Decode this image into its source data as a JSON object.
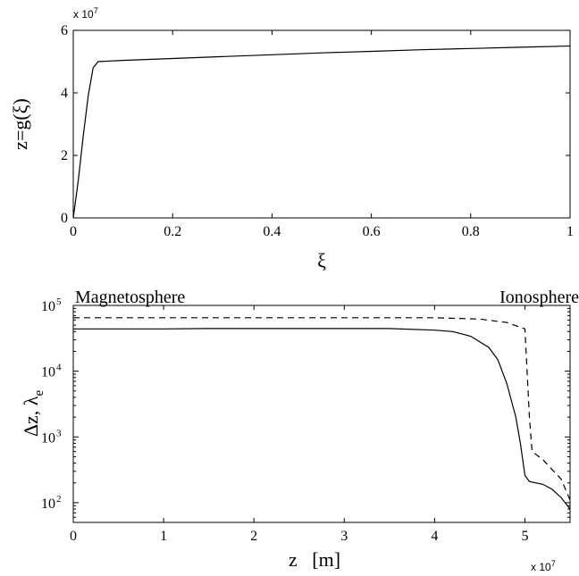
{
  "chart_data": [
    {
      "type": "line",
      "xlabel": "ξ",
      "ylabel": "z=g(ξ)",
      "xlim": [
        0,
        1
      ],
      "ylim": [
        0,
        6
      ],
      "y_multiplier": "x 10",
      "y_multiplier_exp": "7",
      "xticks": [
        "0",
        "0.2",
        "0.4",
        "0.6",
        "0.8",
        "1"
      ],
      "yticks": [
        "0",
        "2",
        "4",
        "6"
      ],
      "series": [
        {
          "style": "solid",
          "x": [
            0,
            0.01,
            0.02,
            0.03,
            0.04,
            0.05,
            0.1,
            0.2,
            0.3,
            0.4,
            0.5,
            0.6,
            0.7,
            0.8,
            0.9,
            1.0
          ],
          "y": [
            0,
            1.2,
            2.6,
            3.9,
            4.8,
            5.0,
            5.04,
            5.1,
            5.16,
            5.22,
            5.28,
            5.33,
            5.38,
            5.42,
            5.46,
            5.5
          ]
        }
      ]
    },
    {
      "type": "line",
      "xlabel": "z   [m]",
      "ylabel": "Δz, λ",
      "ylabel_sub": "e",
      "xlim": [
        0,
        5.5
      ],
      "ylim_exp": [
        1.7,
        5
      ],
      "yscale": "log",
      "x_multiplier": "x 10",
      "x_multiplier_exp": "7",
      "xticks": [
        "0",
        "1",
        "2",
        "3",
        "4",
        "5"
      ],
      "yticks": [
        {
          "base": "10",
          "exp": "2"
        },
        {
          "base": "10",
          "exp": "3"
        },
        {
          "base": "10",
          "exp": "4"
        },
        {
          "base": "10",
          "exp": "5"
        }
      ],
      "annotations": [
        "Magnetosphere",
        "Ionosphere"
      ],
      "series": [
        {
          "style": "solid",
          "x": [
            0,
            0.5,
            1,
            1.5,
            2,
            2.5,
            3,
            3.5,
            4,
            4.2,
            4.4,
            4.6,
            4.7,
            4.8,
            4.9,
            4.95,
            5.0,
            5.05,
            5.2,
            5.3,
            5.4,
            5.5
          ],
          "y": [
            44000,
            44000,
            44000,
            44500,
            44500,
            44500,
            44500,
            44500,
            42000,
            40000,
            34000,
            23000,
            15000,
            6500,
            2000,
            800,
            260,
            210,
            190,
            160,
            120,
            80
          ]
        },
        {
          "style": "dashed",
          "x": [
            0,
            1,
            2,
            3,
            4,
            4.5,
            4.8,
            5.0,
            5.05,
            5.08,
            5.2,
            5.3,
            5.4,
            5.5
          ],
          "y": [
            65000,
            65000,
            65000,
            65000,
            65000,
            62000,
            55000,
            44000,
            2000,
            600,
            450,
            320,
            230,
            110
          ]
        }
      ]
    }
  ]
}
